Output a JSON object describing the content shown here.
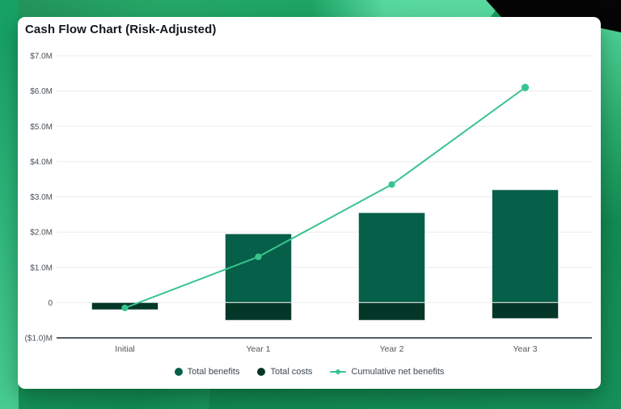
{
  "card": {
    "title": "Cash Flow Chart (Risk-Adjusted)"
  },
  "chart_data": {
    "type": "bar",
    "subtype": "stacked-bars-with-cumulative-line",
    "title": "Cash Flow Chart (Risk-Adjusted)",
    "categories": [
      "Initial",
      "Year 1",
      "Year 2",
      "Year 3"
    ],
    "series": [
      {
        "name": "Total benefits",
        "kind": "bar",
        "values_musd": [
          0,
          1.95,
          2.55,
          3.2
        ],
        "color": "#065f49"
      },
      {
        "name": "Total costs",
        "kind": "bar",
        "values_musd": [
          -0.2,
          -0.5,
          -0.5,
          -0.45
        ],
        "color": "#043728"
      },
      {
        "name": "Cumulative net benefits",
        "kind": "line",
        "values_musd": [
          -0.15,
          1.3,
          3.35,
          6.1
        ],
        "color": "#38c48e"
      }
    ],
    "y_axis": {
      "min": -1,
      "max": 7,
      "unit": "millions USD",
      "ticks": [
        {
          "value": 7,
          "label": "$7.0M"
        },
        {
          "value": 6,
          "label": "$6.0M"
        },
        {
          "value": 5,
          "label": "$5.0M"
        },
        {
          "value": 4,
          "label": "$4.0M"
        },
        {
          "value": 3,
          "label": "$3.0M"
        },
        {
          "value": 2,
          "label": "$2.0M"
        },
        {
          "value": 1,
          "label": "$1.0M"
        },
        {
          "value": 0,
          "label": "0"
        },
        {
          "value": -1,
          "label": "($1.0)M"
        }
      ]
    },
    "grid": true,
    "legend_position": "bottom"
  },
  "colors": {
    "card_bg": "#ffffff",
    "title_text": "#13181d",
    "grid_line": "#ebebeb",
    "axis_line": "#565d63",
    "tick_text": "#4a5158",
    "x_label_text": "#52575c",
    "legend_text": "#3d4852",
    "bar_stroke": "rgba(255,255,255,0.55)",
    "separator": "#c9cfcb",
    "bg_mint": "#57d89e",
    "bg_green": "#17a165",
    "bg_black": "#050505"
  }
}
